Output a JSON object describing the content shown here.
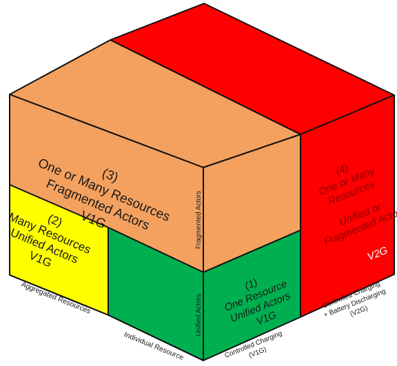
{
  "colors": {
    "orange": "#f4a15f",
    "red": "#ff0000",
    "yellow": "#ffff00",
    "green": "#00b050",
    "white": "#ffffff",
    "dark": "#1a1a1a"
  },
  "boxes": {
    "box3": {
      "number": "(3)",
      "lines": [
        "One or Many Resources",
        "Fragmented Actors",
        "V1G"
      ]
    },
    "box2": {
      "number": "(2)",
      "lines": [
        "Many Resources",
        "Unified Actors",
        "V1G"
      ]
    },
    "box1": {
      "number": "(1)",
      "lines": [
        "One Resource",
        "Unified Actors",
        "V1G"
      ]
    },
    "box4": {
      "number": "(4)",
      "lines": [
        "One or Many",
        "Resources",
        "Unified or",
        "Fragmented Actors",
        "V2G"
      ]
    }
  },
  "axes": {
    "aggregated_resources": "Aggregated Resources",
    "individual_resource": "Individual Resource",
    "controlled_charging": [
      "Controlled Charging",
      "(V1G)"
    ],
    "v2g_axis": [
      "Controlled Charging",
      "+ Battery Discharging",
      "(V2G)"
    ],
    "fragmented_actors": "Fragmented Actors",
    "unified_actors": "Unified Actors"
  }
}
